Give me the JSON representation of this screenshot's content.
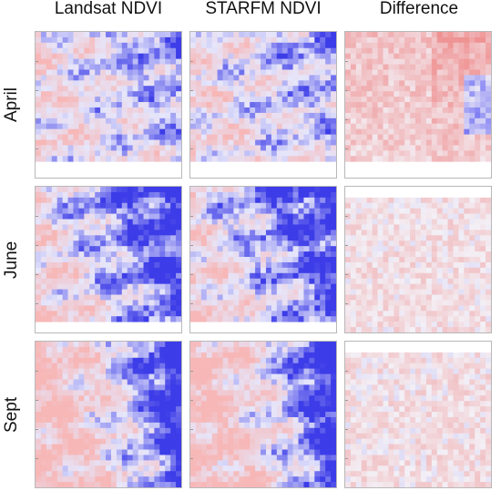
{
  "columns": [
    {
      "key": "landsat",
      "title": "Landsat NDVI"
    },
    {
      "key": "starfm",
      "title": "STARFM NDVI"
    },
    {
      "key": "difference",
      "title": "Difference"
    }
  ],
  "rows": [
    {
      "key": "april",
      "label": "April"
    },
    {
      "key": "june",
      "label": "June"
    },
    {
      "key": "sept",
      "label": "Sept"
    }
  ],
  "colors": {
    "low_ndvi": "#f7b7b7",
    "mid_ndvi": "#e6e6fb",
    "high_ndvi": "#3c3ce8",
    "diff_positive": "#ef8c8c",
    "diff_negative": "#4b4bf2",
    "diff_neutral": "#f3f0f6"
  }
}
